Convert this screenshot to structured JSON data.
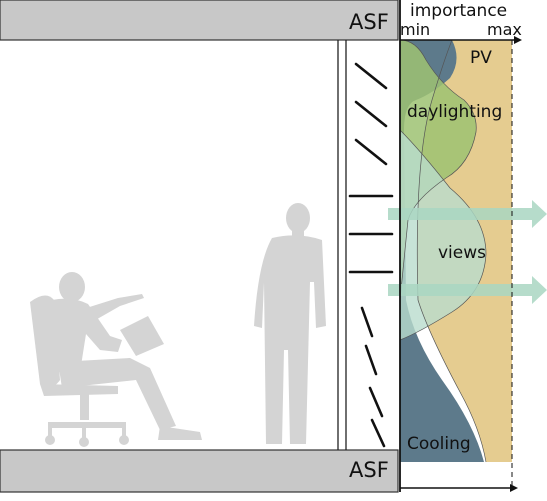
{
  "slabs": {
    "top_label": "ASF",
    "bottom_label": "ASF"
  },
  "axis": {
    "title": "importance",
    "min_label": "min",
    "max_label": "max"
  },
  "areas": {
    "pv": "PV",
    "daylighting": "daylighting",
    "views": "views",
    "cooling": "Cooling"
  },
  "colors": {
    "slab": "#c8c8c8",
    "silhouette": "#d4d4d4",
    "pv": "#e3c887",
    "daylighting": "#9dc272",
    "views": "#b9dccd",
    "cooling": "#5d7a8b",
    "arrow": "#a9d6c2"
  }
}
